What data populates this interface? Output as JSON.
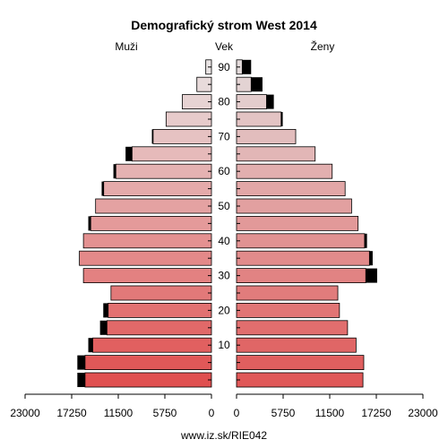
{
  "chart_data": {
    "type": "bar",
    "title": "Demografický strom West 2014",
    "left_label": "Muži",
    "center_label": "Vek",
    "right_label": "Ženy",
    "source": "www.iz.sk/RIE042",
    "ages": [
      0,
      5,
      10,
      15,
      20,
      25,
      30,
      35,
      40,
      45,
      50,
      55,
      60,
      65,
      70,
      75,
      80,
      85,
      90
    ],
    "age_ticks": [
      10,
      20,
      30,
      40,
      50,
      60,
      70,
      80,
      90
    ],
    "value_ticks": [
      "23000",
      "17250",
      "11500",
      "5750",
      "0",
      "5750",
      "11500",
      "17250",
      "23000"
    ],
    "xlim": [
      0,
      23000
    ],
    "series": [
      {
        "name": "Muži",
        "base": [
          15600,
          15600,
          14650,
          12900,
          12750,
          12400,
          15800,
          16300,
          15800,
          14900,
          14300,
          13300,
          11800,
          9800,
          7200,
          5600,
          3600,
          1800,
          700
        ],
        "extra": [
          950,
          950,
          550,
          850,
          600,
          0,
          0,
          0,
          0,
          300,
          0,
          250,
          300,
          800,
          150,
          0,
          0,
          0,
          0
        ]
      },
      {
        "name": "Ženy",
        "base": [
          15600,
          15700,
          14750,
          13700,
          12700,
          12500,
          15950,
          16400,
          15800,
          15000,
          14200,
          13400,
          11800,
          9700,
          7300,
          5500,
          3700,
          1800,
          700
        ],
        "extra": [
          0,
          0,
          0,
          0,
          0,
          0,
          1400,
          400,
          300,
          0,
          0,
          0,
          0,
          0,
          0,
          200,
          900,
          1400,
          1100
        ]
      }
    ],
    "colors": {
      "left_fill_young": "#e05050",
      "left_fill_old": "#e8e3e3",
      "right_fill_young": "#e05858",
      "right_fill_old": "#e3dada",
      "extra": "#000000",
      "bar_border": "#000000"
    }
  }
}
